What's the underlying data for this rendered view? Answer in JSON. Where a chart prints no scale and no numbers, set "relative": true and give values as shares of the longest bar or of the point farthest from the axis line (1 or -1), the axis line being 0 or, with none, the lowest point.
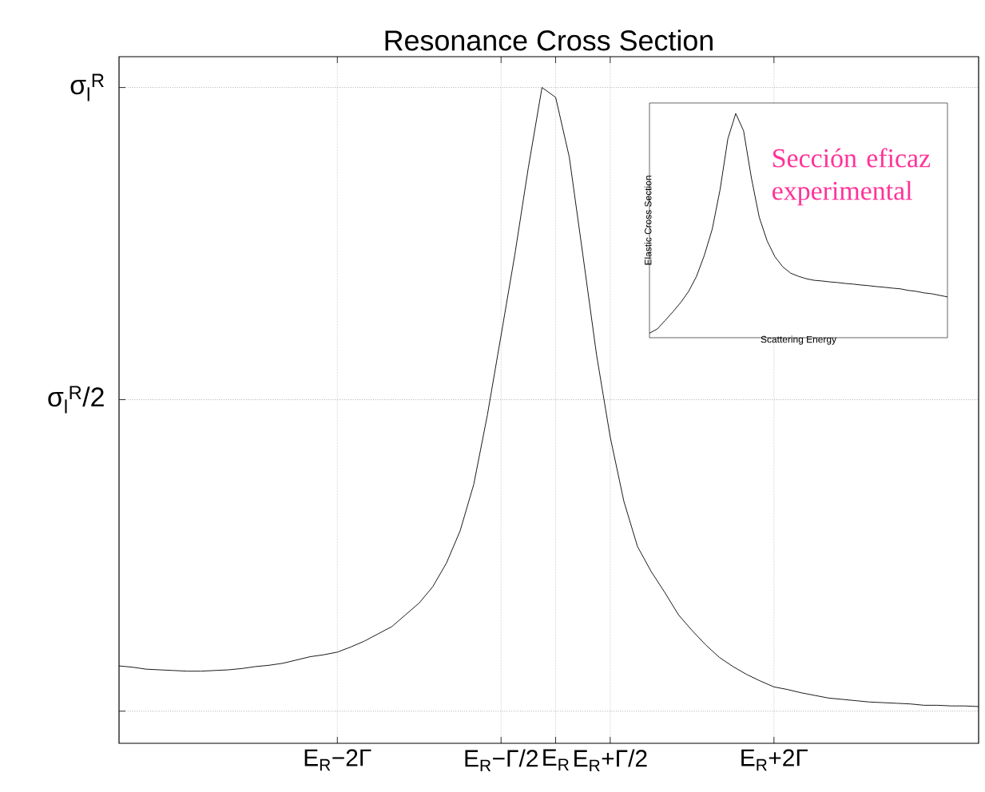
{
  "chart_data": [
    {
      "type": "line",
      "relative": true,
      "title": "Resonance Cross Section",
      "categories": [
        null,
        null,
        null,
        null,
        null,
        null,
        null,
        null,
        null,
        null,
        null,
        null,
        null,
        null,
        null,
        null,
        "E$_{R}$−2Γ",
        null,
        null,
        null,
        null,
        null,
        null,
        null,
        null,
        null,
        null,
        null,
        "E$_{R}$−Γ/2",
        null,
        null,
        null,
        "E$_{R}$",
        null,
        null,
        null,
        "E$_{R}$+Γ/2",
        null,
        null,
        null,
        null,
        null,
        null,
        null,
        null,
        null,
        null,
        null,
        "E$_{R}$+2Γ",
        null,
        null,
        null,
        null,
        null,
        null,
        null,
        null,
        null,
        null,
        null,
        null,
        null,
        null,
        null
      ],
      "series": [
        {
          "color": "#000000",
          "values": [
            0.118,
            0.116,
            0.113,
            0.112,
            0.111,
            0.11,
            0.11,
            0.111,
            0.112,
            0.114,
            0.117,
            0.119,
            0.122,
            0.127,
            0.132,
            0.135,
            0.139,
            0.147,
            0.156,
            0.167,
            0.178,
            0.196,
            0.214,
            0.239,
            0.275,
            0.324,
            0.395,
            0.501,
            0.622,
            0.744,
            0.878,
            1,
            0.985,
            0.894,
            0.744,
            0.592,
            0.467,
            0.369,
            0.3,
            0.262,
            0.23,
            0.196,
            0.172,
            0.15,
            0.131,
            0.117,
            0.105,
            0.095,
            0.086,
            0.082,
            0.077,
            0.073,
            0.069,
            0.067,
            0.065,
            0.063,
            0.062,
            0.061,
            0.06,
            0.058,
            0.058,
            0.057,
            0.057,
            0.056
          ]
        }
      ],
      "ref_lines": [
        {
          "axis": "y",
          "value": 0.049,
          "line_style": "dotted"
        },
        {
          "axis": "y",
          "value": 0.524,
          "label": "σ$_{l}$$^{R}$/2",
          "line_style": "dotted"
        },
        {
          "axis": "y",
          "value": 1,
          "label": "σ$_{l}$$^{R}$",
          "line_style": "dotted"
        }
      ],
      "grid": "x"
    },
    {
      "type": "line",
      "relative": true,
      "xlabel": "Scattering Energy",
      "ylabel": "Elastic Cross Section",
      "categories": [
        null,
        null,
        null,
        null,
        null,
        null,
        null,
        null,
        null,
        null,
        null,
        null,
        null,
        null,
        null,
        null,
        null,
        null,
        null,
        null,
        null,
        null,
        null,
        null,
        null,
        null,
        null,
        null,
        null,
        null,
        null,
        null,
        null,
        null,
        null,
        null,
        null,
        null,
        null
      ],
      "series": [
        {
          "color": "#000000",
          "values": [
            0.02,
            0.039,
            0.077,
            0.116,
            0.158,
            0.207,
            0.274,
            0.368,
            0.484,
            0.66,
            0.888,
            1,
            0.923,
            0.712,
            0.537,
            0.432,
            0.361,
            0.316,
            0.288,
            0.274,
            0.263,
            0.256,
            0.253,
            0.249,
            0.246,
            0.242,
            0.239,
            0.235,
            0.232,
            0.228,
            0.225,
            0.221,
            0.218,
            0.211,
            0.207,
            0.2,
            0.196,
            0.189,
            0.182
          ]
        }
      ],
      "annotations": [
        "Sección eficaz experimental"
      ]
    }
  ]
}
